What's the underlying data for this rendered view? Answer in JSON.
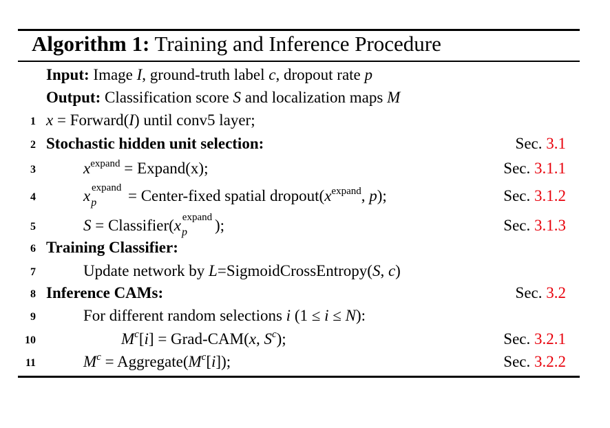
{
  "title": {
    "label": "Algorithm 1:",
    "text": "Training and Inference Procedure"
  },
  "input": {
    "label": "Input:",
    "t1": "Image ",
    "m1": "I",
    "t2": ", ground-truth label ",
    "m2": "c",
    "t3": ", dropout rate ",
    "m3": "p"
  },
  "output": {
    "label": "Output:",
    "t1": "Classification score ",
    "m1": "S",
    "t2": " and localization maps ",
    "m2": "M"
  },
  "lines": {
    "l1": {
      "num": "1",
      "m1": "x",
      "t1": " = Forward(",
      "m2": "I",
      "t2": ") until conv5 layer;"
    },
    "l2": {
      "num": "2",
      "text": "Stochastic hidden unit selection:",
      "ref_prefix": "Sec. ",
      "ref": "3.1"
    },
    "l3": {
      "num": "3",
      "m1": "x",
      "sup1": "expand",
      "t1": " = Expand(x);",
      "ref_prefix": "Sec. ",
      "ref": "3.1.1"
    },
    "l4": {
      "num": "4",
      "m1": "x",
      "sup1": "expand",
      "sub1": "p",
      "t1": " = Center-fixed spatial dropout(",
      "m2": "x",
      "sup2": "expand",
      "t2": ", ",
      "m3": "p",
      "t3": ");",
      "ref_prefix": "Sec. ",
      "ref": "3.1.2"
    },
    "l5": {
      "num": "5",
      "m1": "S",
      "t1": " = Classifier(",
      "m2": "x",
      "sup2": "expand",
      "sub2": "p",
      "t2": ");",
      "ref_prefix": "Sec. ",
      "ref": "3.1.3"
    },
    "l6": {
      "num": "6",
      "text": "Training Classifier:"
    },
    "l7": {
      "num": "7",
      "t1": "Update network by ",
      "m1": "L",
      "t2": "=SigmoidCrossEntropy(",
      "m2": "S",
      "t3": ", ",
      "m3": "c",
      "t4": ")"
    },
    "l8": {
      "num": "8",
      "text": "Inference CAMs:",
      "ref_prefix": "Sec. ",
      "ref": "3.2"
    },
    "l9": {
      "num": "9",
      "t1": "For different random selections ",
      "m1": "i",
      "t2": " (1 ≤ ",
      "m2": "i",
      "t3": " ≤ ",
      "m3": "N",
      "t4": "):"
    },
    "l10": {
      "num": "10",
      "m1": "M",
      "sup1": "c",
      "t1": "[",
      "m2": "i",
      "t2": "] = Grad-CAM(",
      "m3": "x",
      "t3": ", ",
      "m4": "S",
      "sup2": "c",
      "t4": ");",
      "ref_prefix": "Sec. ",
      "ref": "3.2.1"
    },
    "l11": {
      "num": "11",
      "m1": "M",
      "sup1": "c",
      "t1": " = Aggregate(",
      "m2": "M",
      "sup2": "c",
      "t2": "[",
      "m3": "i",
      "t3": "]);",
      "ref_prefix": "Sec. ",
      "ref": "3.2.2"
    }
  }
}
